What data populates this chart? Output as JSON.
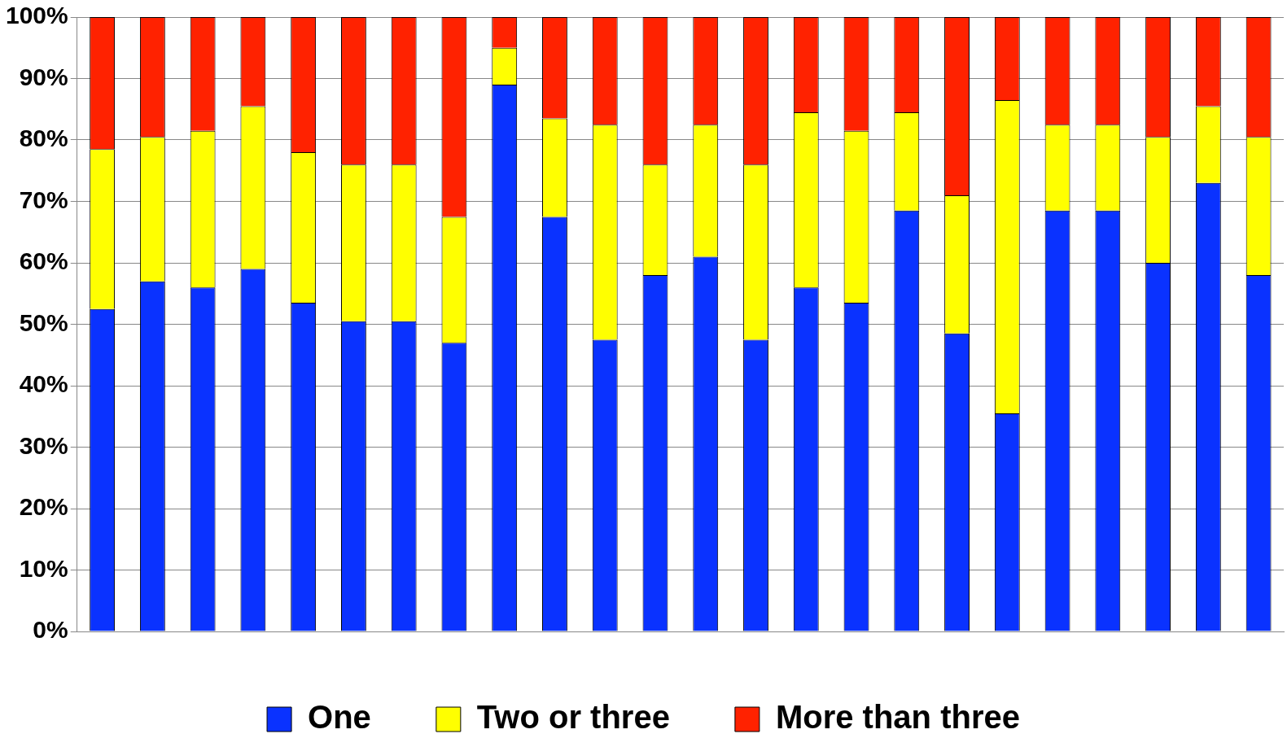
{
  "chart_data": {
    "type": "bar",
    "stacked": true,
    "categories": [
      null,
      null,
      null,
      null,
      null,
      null,
      null,
      null,
      null,
      null,
      null,
      null,
      null,
      null,
      null,
      null,
      null,
      null,
      null,
      null,
      null,
      null,
      null,
      null
    ],
    "series": [
      {
        "name": "One",
        "color": "#0a32ff",
        "values": [
          52.5,
          57,
          56,
          59,
          53.5,
          50.5,
          50.5,
          47,
          89,
          67.5,
          47.5,
          58,
          61,
          47.5,
          56,
          53.5,
          68.5,
          48.5,
          35.5,
          68.5,
          68.5,
          60,
          73,
          58
        ]
      },
      {
        "name": "Two or three",
        "color": "#ffff00",
        "values": [
          26,
          23.5,
          25.5,
          26.5,
          24.5,
          25.5,
          25.5,
          20.5,
          6,
          16,
          35,
          18,
          21.5,
          28.5,
          28.5,
          28,
          16,
          22.5,
          51,
          14,
          14,
          20.5,
          12.5,
          22.5
        ]
      },
      {
        "name": "More than three",
        "color": "#ff2200",
        "values": [
          21.5,
          19.5,
          18.5,
          14.5,
          22,
          24,
          24,
          32.5,
          5,
          16.5,
          17.5,
          24,
          17.5,
          24,
          15.5,
          18.5,
          15.5,
          29,
          13.5,
          17.5,
          17.5,
          19.5,
          14.5,
          19.5
        ]
      }
    ],
    "ylim": [
      0,
      100
    ],
    "yticks": [
      {
        "value": 0,
        "label": "0%"
      },
      {
        "value": 10,
        "label": "10%"
      },
      {
        "value": 20,
        "label": "20%"
      },
      {
        "value": 30,
        "label": "30%"
      },
      {
        "value": 40,
        "label": "40%"
      },
      {
        "value": 50,
        "label": "50%"
      },
      {
        "value": 60,
        "label": "60%"
      },
      {
        "value": 70,
        "label": "70%"
      },
      {
        "value": 80,
        "label": "80%"
      },
      {
        "value": 90,
        "label": "90%"
      },
      {
        "value": 100,
        "label": "100%"
      }
    ],
    "grid": "y",
    "legend": "bottom",
    "tick_labels": "y"
  }
}
